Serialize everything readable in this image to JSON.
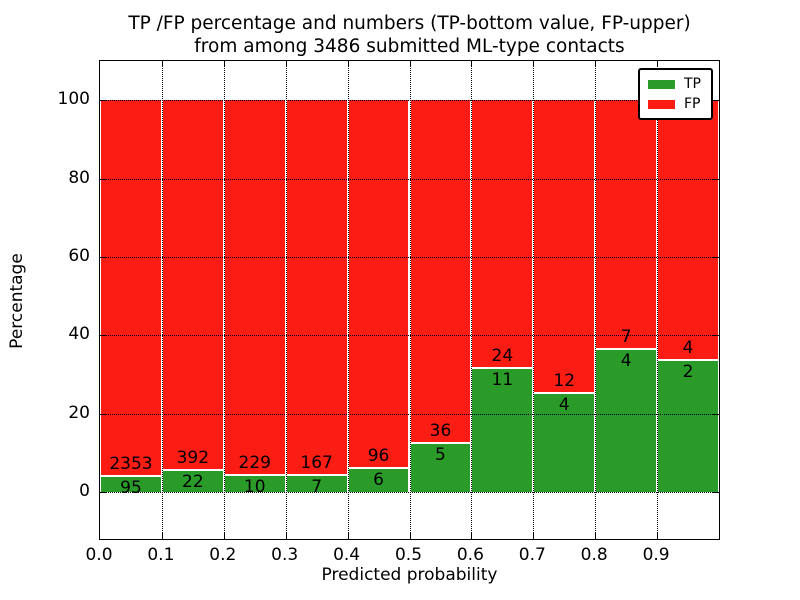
{
  "title": {
    "line1": "TP /FP percentage and numbers (TP-bottom value, FP-upper)",
    "line2": "from among 3486 submitted ML-type contacts"
  },
  "chart_data": {
    "type": "bar",
    "subtype": "stacked-percentage",
    "title": "TP /FP percentage and numbers (TP-bottom value, FP-upper) from among 3486 submitted ML-type contacts",
    "xlabel": "Predicted probability",
    "ylabel": "Percentage",
    "categories": [
      "0.0",
      "0.1",
      "0.2",
      "0.3",
      "0.4",
      "0.5",
      "0.6",
      "0.7",
      "0.8",
      "0.9"
    ],
    "series": [
      {
        "name": "TP",
        "color": "#2a9b28",
        "counts": [
          95,
          22,
          10,
          7,
          6,
          5,
          11,
          4,
          4,
          2
        ]
      },
      {
        "name": "FP",
        "color": "#fb1d14",
        "counts": [
          2353,
          392,
          229,
          167,
          96,
          36,
          24,
          12,
          7,
          4
        ]
      }
    ],
    "total_contacts_shown_in_title": 3486,
    "bar_total_percent": 100,
    "yticks": [
      0,
      20,
      40,
      60,
      80,
      100
    ],
    "ylim": [
      -12,
      110
    ],
    "xlim": [
      0.0,
      1.0
    ],
    "grid": "dotted",
    "legend": {
      "position": "upper right",
      "entries": [
        "TP",
        "FP"
      ]
    }
  },
  "legend": {
    "tp_label": "TP",
    "fp_label": "FP"
  },
  "axes": {
    "xlabel": "Predicted probability",
    "ylabel": "Percentage"
  }
}
